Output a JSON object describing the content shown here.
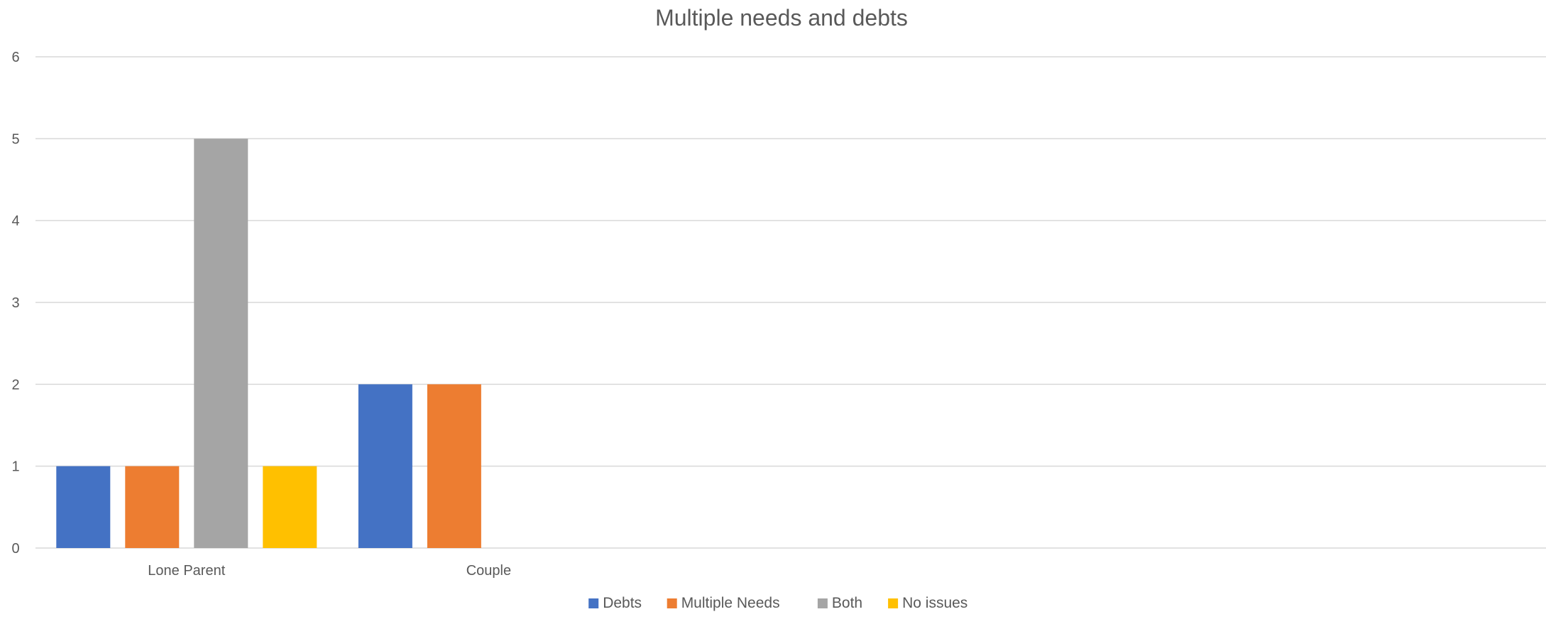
{
  "chart_data": {
    "type": "bar",
    "title": "Multiple needs and debts",
    "xlabel": "",
    "ylabel": "",
    "categories": [
      "Lone Parent",
      "Couple",
      "",
      "",
      ""
    ],
    "ylim": [
      0,
      6
    ],
    "yticks": [
      0,
      1,
      2,
      3,
      4,
      5,
      6
    ],
    "grid": true,
    "legend_position": "bottom",
    "series": [
      {
        "name": "Debts",
        "color": "#4472C4",
        "values": [
          1,
          2,
          null,
          null,
          null
        ]
      },
      {
        "name": "Multiple Needs",
        "color": "#ED7D31",
        "values": [
          1,
          2,
          null,
          null,
          null
        ]
      },
      {
        "name": "Both",
        "color": "#A5A5A5",
        "values": [
          5,
          null,
          null,
          null,
          null
        ]
      },
      {
        "name": "No issues",
        "color": "#FFC000",
        "values": [
          1,
          null,
          null,
          null,
          null
        ]
      }
    ]
  }
}
